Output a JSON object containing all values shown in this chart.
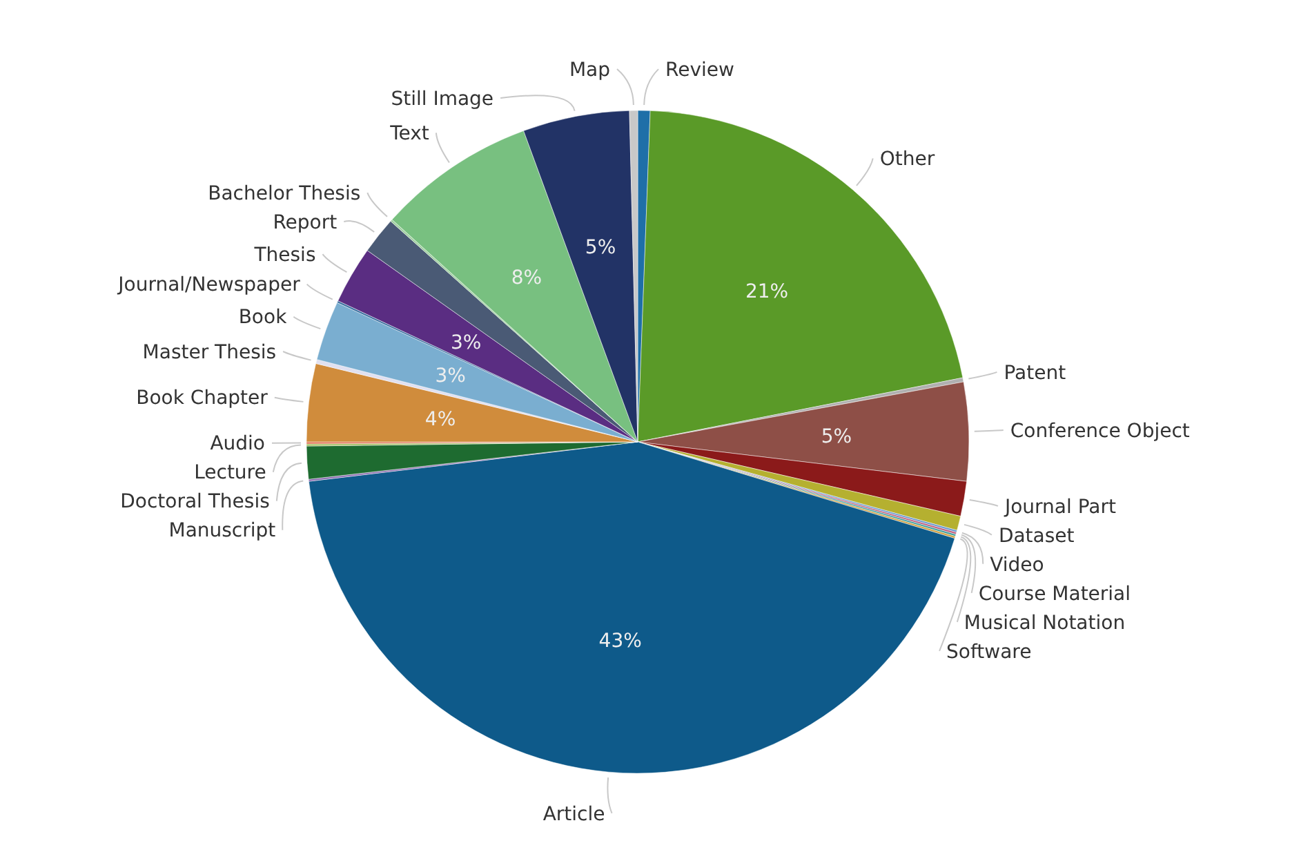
{
  "chart_data": {
    "type": "pie",
    "categories": [
      "Review",
      "Other",
      "Patent",
      "Conference Object",
      "Journal Part",
      "Dataset",
      "Video",
      "Course Material",
      "Musical Notation",
      "Software",
      "Article",
      "Manuscript",
      "Doctoral Thesis",
      "Lecture",
      "Audio",
      "Book Chapter",
      "Master Thesis",
      "Book",
      "Journal/Newspaper",
      "Thesis",
      "Report",
      "Bachelor Thesis",
      "Text",
      "Still Image",
      "Map"
    ],
    "values": [
      0.6,
      21.3,
      0.2,
      4.8,
      1.7,
      0.7,
      0.1,
      0.1,
      0.1,
      0.1,
      43.4,
      0.1,
      1.6,
      0.1,
      0.1,
      3.8,
      0.2,
      2.9,
      0.1,
      2.8,
      1.8,
      0.1,
      7.7,
      5.2,
      0.4
    ],
    "colors": [
      "#1f6fa8",
      "#5a9a28",
      "#b0b0b0",
      "#8e4f47",
      "#8b1a1a",
      "#b5b030",
      "#6a9ad0",
      "#c06080",
      "#40a0a0",
      "#d0a040",
      "#0e5a8a",
      "#8a6ab0",
      "#1e6b30",
      "#a0c060",
      "#e07050",
      "#d08c3c",
      "#e0e0f0",
      "#7aaed0",
      "#3a70a0",
      "#5a2d82",
      "#4a5a75",
      "#a0d0a0",
      "#78c080",
      "#223366",
      "#c8c8c8"
    ],
    "value_labels": [
      null,
      "21%",
      null,
      "5%",
      null,
      null,
      null,
      null,
      null,
      null,
      "43%",
      null,
      null,
      null,
      null,
      "4%",
      null,
      "3%",
      null,
      "3%",
      null,
      null,
      "8%",
      "5%",
      null
    ],
    "legend": false
  }
}
